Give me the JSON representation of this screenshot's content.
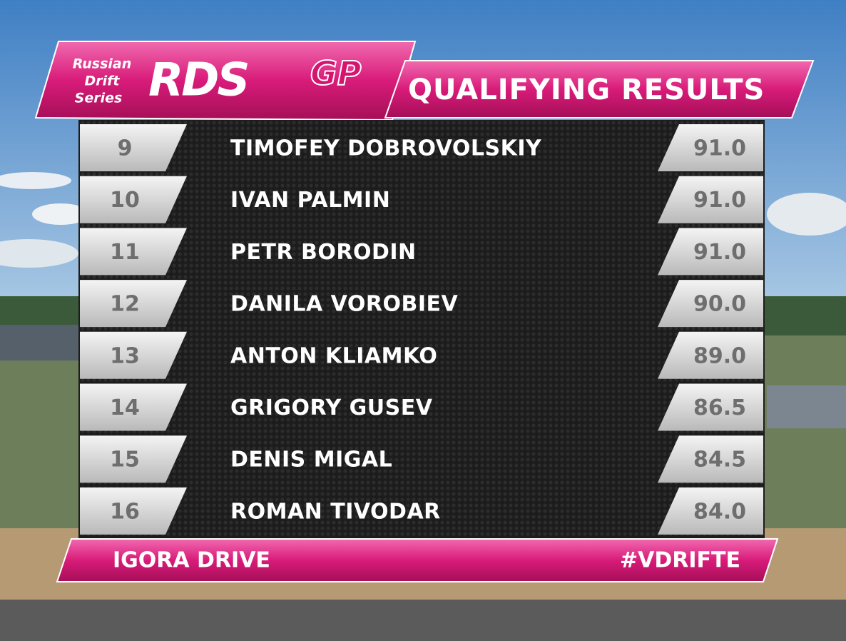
{
  "header": {
    "logo": {
      "tagline": [
        "Russian",
        "Drift",
        "Series"
      ],
      "mark": "RDS",
      "suffix": "GP"
    },
    "title": "QUALIFYING RESULTS"
  },
  "table": {
    "rows": [
      [
        9,
        "TIMOFEY DOBROVOLSKIY",
        "91.0"
      ],
      [
        10,
        "IVAN PALMIN",
        "91.0"
      ],
      [
        11,
        "PETR BORODIN",
        "91.0"
      ],
      [
        12,
        "DANILA VOROBIEV",
        "90.0"
      ],
      [
        13,
        "ANTON KLIAMKO",
        "89.0"
      ],
      [
        14,
        "GRIGORY GUSEV",
        "86.5"
      ],
      [
        15,
        "DENIS MIGAL",
        "84.5"
      ],
      [
        16,
        "ROMAN TIVODAR",
        "84.0"
      ]
    ]
  },
  "footer": {
    "left": "IGORA DRIVE",
    "right": "#VDRIFTE"
  }
}
